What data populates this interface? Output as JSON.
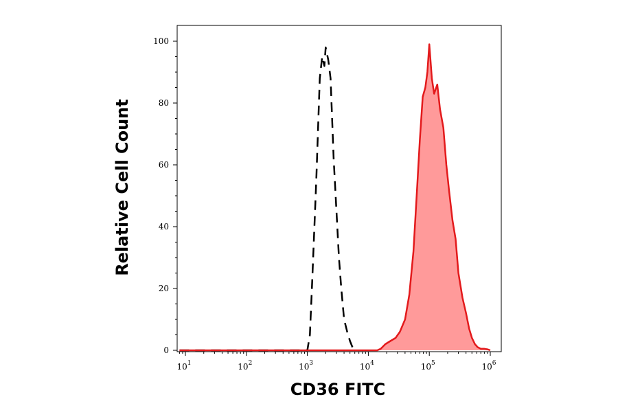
{
  "chart_data": {
    "type": "area",
    "xlabel": "CD36 FITC",
    "ylabel": "Relative Cell Count",
    "x_scale": "log",
    "xlim": [
      10,
      1000000
    ],
    "ylim": [
      0,
      100
    ],
    "x_ticks": [
      {
        "base": "10",
        "exp": "1",
        "value": 10
      },
      {
        "base": "10",
        "exp": "2",
        "value": 100
      },
      {
        "base": "10",
        "exp": "3",
        "value": 1000
      },
      {
        "base": "10",
        "exp": "4",
        "value": 10000
      },
      {
        "base": "10",
        "exp": "5",
        "value": 100000
      },
      {
        "base": "10",
        "exp": "6",
        "value": 1000000
      }
    ],
    "y_ticks": [
      "0",
      "20",
      "40",
      "60",
      "80",
      "100"
    ],
    "grid": false,
    "series": [
      {
        "style": "dashed-outline",
        "color": "#000000",
        "x": [
          8,
          1000,
          1100,
          1200,
          1400,
          1600,
          1750,
          1900,
          2000,
          2200,
          2400,
          2700,
          3000,
          3300,
          3600,
          4000,
          4500,
          5000,
          5500,
          6000,
          6300
        ],
        "y": [
          0,
          0,
          5,
          22,
          55,
          88,
          95,
          92,
          98,
          94,
          88,
          62,
          45,
          30,
          20,
          10,
          6,
          3,
          1,
          0,
          0
        ]
      },
      {
        "style": "filled",
        "color": "#e31a1c",
        "fill": "#ff9a9a",
        "x": [
          8,
          14000,
          16000,
          19000,
          23000,
          28000,
          33000,
          40000,
          47000,
          55000,
          62000,
          70000,
          78000,
          86000,
          93000,
          100000,
          110000,
          120000,
          135000,
          150000,
          170000,
          190000,
          210000,
          240000,
          270000,
          300000,
          350000,
          400000,
          450000,
          500000,
          560000,
          620000,
          700000,
          800000,
          900000,
          1000000
        ],
        "y": [
          0,
          0,
          0.5,
          2,
          3,
          4,
          6,
          10,
          18,
          32,
          50,
          68,
          82,
          85,
          90,
          99,
          88,
          83,
          86,
          78,
          72,
          60,
          52,
          42,
          36,
          25,
          17,
          12,
          7,
          4,
          2,
          1,
          0.5,
          0.5,
          0.3,
          0
        ]
      }
    ]
  }
}
